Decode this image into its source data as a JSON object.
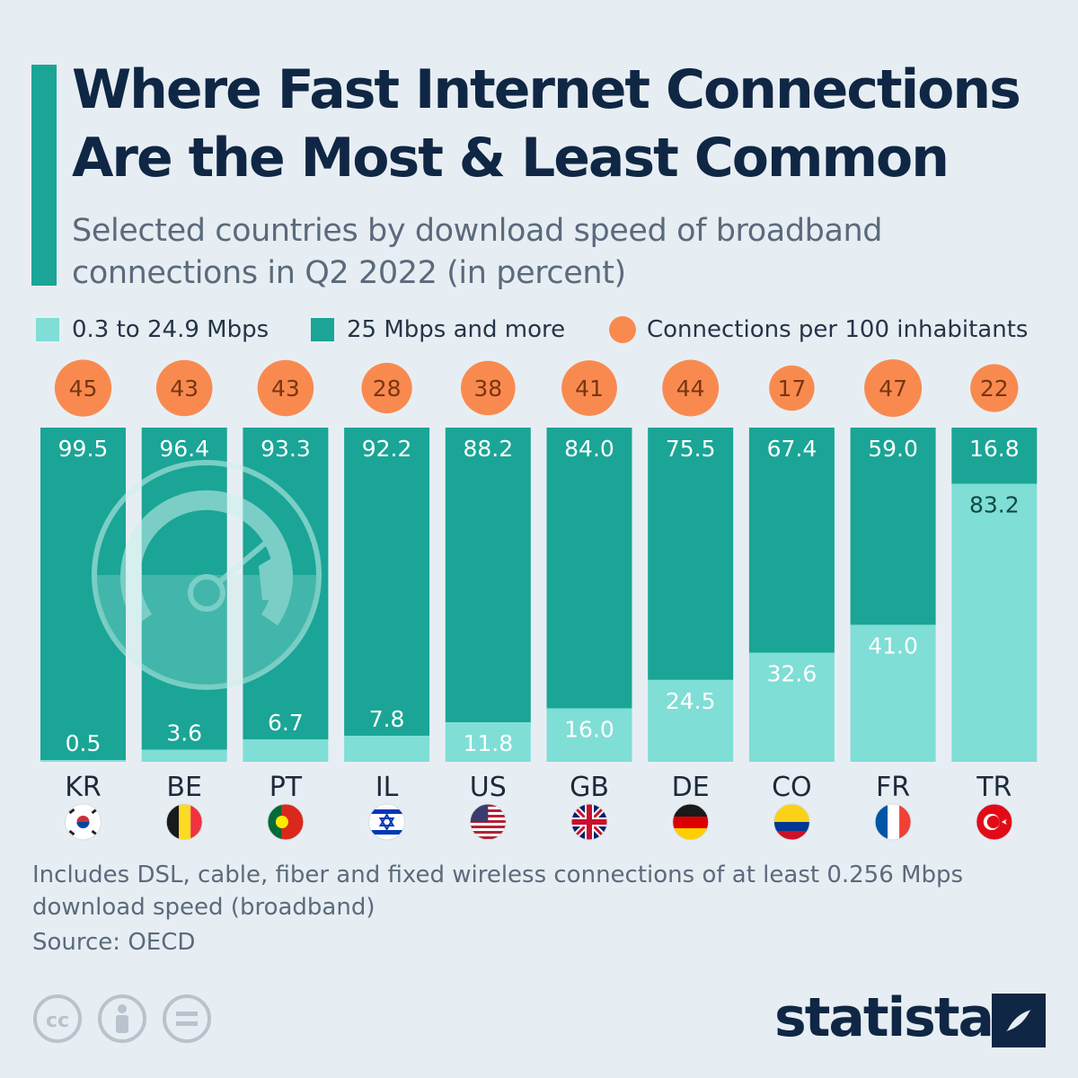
{
  "title": "Where Fast Internet Connections Are the Most & Least Common",
  "subtitle": "Selected countries by download speed of broadband connections in Q2 2022 (in percent)",
  "legend": {
    "slow": "0.3 to 24.9 Mbps",
    "fast": "25 Mbps and more",
    "connections": "Connections per 100 inhabitants"
  },
  "colors": {
    "slow": "#7fded6",
    "fast": "#1aa596",
    "bubble": "#f98a4f",
    "title": "#0f2744",
    "background": "#e7eef3"
  },
  "chart_data": {
    "type": "bar",
    "stacked": true,
    "categories": [
      "KR",
      "BE",
      "PT",
      "IL",
      "US",
      "GB",
      "DE",
      "CO",
      "FR",
      "TR"
    ],
    "series": [
      {
        "name": "0.3 to 24.9 Mbps",
        "values": [
          0.5,
          3.6,
          6.7,
          7.8,
          11.8,
          16.0,
          24.5,
          32.6,
          41.0,
          83.2
        ]
      },
      {
        "name": "25 Mbps and more",
        "values": [
          99.5,
          96.4,
          93.3,
          92.2,
          88.2,
          84.0,
          75.5,
          67.4,
          59.0,
          16.8
        ]
      }
    ],
    "connections_per_100": [
      45,
      43,
      43,
      28,
      38,
      41,
      44,
      17,
      47,
      22
    ],
    "ylim": [
      0,
      100
    ],
    "flags": [
      "flag-kr-icon",
      "flag-be-icon",
      "flag-pt-icon",
      "flag-il-icon",
      "flag-us-icon",
      "flag-gb-icon",
      "flag-de-icon",
      "flag-co-icon",
      "flag-fr-icon",
      "flag-tr-icon"
    ]
  },
  "footnote": "Includes DSL, cable, fiber and fixed wireless connections of at least 0.256 Mbps download speed (broadband)",
  "source": "Source: OECD",
  "logo": "statista",
  "license_icons": [
    "creative-commons-icon",
    "attribution-icon",
    "no-derivatives-icon"
  ],
  "decoration_icon": "speedometer-icon"
}
